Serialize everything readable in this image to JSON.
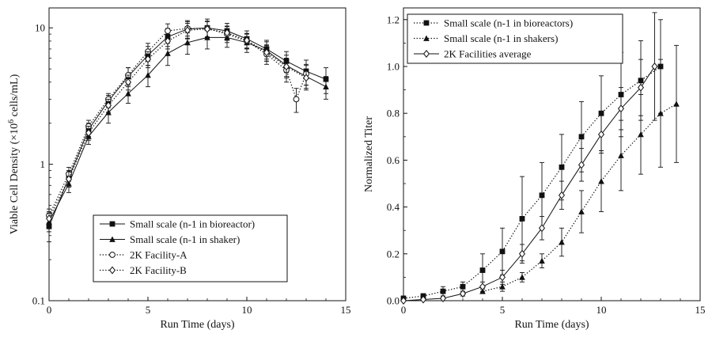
{
  "chart_data": [
    {
      "type": "line",
      "yscale": "log",
      "xlabel": "Run Time (days)",
      "ylabel_main": "Viable Cell Density (×10",
      "ylabel_exp": "6",
      "ylabel_tail": " cells/mL)",
      "xlim": [
        0,
        15
      ],
      "ylim": [
        0.1,
        14
      ],
      "xticks": [
        0,
        5,
        10,
        15
      ],
      "xtick_labels": [
        "0",
        "5",
        "10",
        "15"
      ],
      "yticks": [
        0.1,
        1,
        10
      ],
      "ytick_labels": [
        "0.1",
        "1",
        "10"
      ],
      "legend_position": "bottom-right",
      "series": [
        {
          "name": "Small scale (n-1 in bioreactor)",
          "marker": "square",
          "line": "solid",
          "x": [
            0,
            1,
            2,
            3,
            4,
            5,
            6,
            7,
            8,
            9,
            10,
            11,
            12,
            13,
            14
          ],
          "y": [
            0.35,
            0.8,
            1.8,
            2.9,
            4.4,
            6.3,
            8.6,
            9.8,
            10.0,
            9.5,
            8.3,
            7.0,
            5.7,
            4.8,
            4.2
          ],
          "err": [
            0.08,
            0.1,
            0.2,
            0.3,
            0.7,
            1.0,
            1.3,
            1.5,
            1.6,
            1.3,
            1.2,
            1.1,
            1.0,
            1.0,
            0.9
          ]
        },
        {
          "name": "Small scale (n-1 in shaker)",
          "marker": "triangle",
          "line": "solid",
          "x": [
            0,
            1,
            2,
            3,
            4,
            5,
            6,
            7,
            8,
            9,
            10,
            11,
            12,
            13,
            14
          ],
          "y": [
            0.38,
            0.72,
            1.6,
            2.4,
            3.3,
            4.5,
            6.5,
            7.8,
            8.5,
            8.5,
            7.8,
            6.8,
            5.3,
            4.4,
            3.7
          ],
          "err": [
            0.06,
            0.1,
            0.2,
            0.4,
            0.5,
            0.8,
            1.2,
            1.4,
            1.5,
            1.3,
            1.2,
            1.1,
            1.0,
            0.9,
            0.7
          ]
        },
        {
          "name": "2K Facility-A",
          "marker": "circle-open",
          "line": "dotted",
          "x": [
            0,
            1,
            2,
            3,
            4,
            5,
            6,
            7,
            8,
            9,
            10,
            11,
            12,
            12.5,
            13
          ],
          "y": [
            0.42,
            0.85,
            1.9,
            3.0,
            4.5,
            6.7,
            9.5,
            9.9,
            9.9,
            9.0,
            8.0,
            6.4,
            4.9,
            3.0,
            4.6
          ],
          "err": [
            0.05,
            0.1,
            0.2,
            0.3,
            0.6,
            1.0,
            1.2,
            1.2,
            1.3,
            1.2,
            1.0,
            1.0,
            0.9,
            0.6,
            0.8
          ]
        },
        {
          "name": "2K Facility-B",
          "marker": "diamond-open",
          "line": "dotted",
          "x": [
            0,
            1,
            2,
            3,
            4,
            5,
            6,
            7,
            8,
            9,
            10,
            11,
            12,
            13
          ],
          "y": [
            0.4,
            0.78,
            1.7,
            2.7,
            4.0,
            5.9,
            8.0,
            9.6,
            9.8,
            9.2,
            8.1,
            6.6,
            5.2,
            4.3
          ],
          "err": [
            0.05,
            0.1,
            0.2,
            0.3,
            0.5,
            0.8,
            1.0,
            1.2,
            1.3,
            1.1,
            1.0,
            0.9,
            0.8,
            0.7
          ]
        }
      ]
    },
    {
      "type": "line",
      "yscale": "linear",
      "xlabel": "Run Time (days)",
      "ylabel": "Normalized Titer",
      "xlim": [
        0,
        15
      ],
      "ylim": [
        0,
        1.25
      ],
      "xticks": [
        0,
        5,
        10,
        15
      ],
      "xtick_labels": [
        "0",
        "5",
        "10",
        "15"
      ],
      "yticks": [
        0,
        0.2,
        0.4,
        0.6,
        0.8,
        1.0,
        1.2
      ],
      "ytick_labels": [
        "0.0",
        "0.2",
        "0.4",
        "0.6",
        "0.8",
        "1.0",
        "1.2"
      ],
      "legend_position": "top-left",
      "series": [
        {
          "name": "Small scale (n-1 in bioreactors)",
          "marker": "square",
          "line": "dotted",
          "x": [
            0,
            1,
            2,
            3,
            4,
            5,
            6,
            7,
            8,
            9,
            10,
            11,
            12,
            13
          ],
          "y": [
            0.01,
            0.02,
            0.04,
            0.06,
            0.13,
            0.21,
            0.35,
            0.45,
            0.57,
            0.7,
            0.8,
            0.88,
            0.94,
            1.0
          ],
          "err": [
            0.01,
            0.01,
            0.02,
            0.02,
            0.07,
            0.1,
            0.18,
            0.14,
            0.14,
            0.15,
            0.16,
            0.18,
            0.17,
            0.2
          ]
        },
        {
          "name": "Small scale (n-1 in shakers)",
          "marker": "triangle",
          "line": "dotted",
          "x": [
            4,
            5,
            6,
            7,
            8,
            9,
            10,
            11,
            12,
            13,
            13.8
          ],
          "y": [
            0.04,
            0.06,
            0.1,
            0.17,
            0.25,
            0.38,
            0.51,
            0.62,
            0.71,
            0.8,
            0.84
          ],
          "err": [
            0.01,
            0.02,
            0.02,
            0.03,
            0.06,
            0.09,
            0.13,
            0.15,
            0.17,
            0.23,
            0.25
          ]
        },
        {
          "name": "2K Facilities average",
          "marker": "diamond-open",
          "line": "solid",
          "x": [
            0,
            1,
            2,
            3,
            4,
            5,
            6,
            7,
            8,
            9,
            10,
            11,
            12,
            12.7
          ],
          "y": [
            0.0,
            0.005,
            0.01,
            0.03,
            0.06,
            0.1,
            0.2,
            0.31,
            0.45,
            0.58,
            0.71,
            0.82,
            0.91,
            1.0
          ],
          "err": [
            0.0,
            0.005,
            0.01,
            0.01,
            0.02,
            0.03,
            0.04,
            0.05,
            0.06,
            0.07,
            0.08,
            0.09,
            0.12,
            0.23
          ]
        }
      ]
    }
  ]
}
